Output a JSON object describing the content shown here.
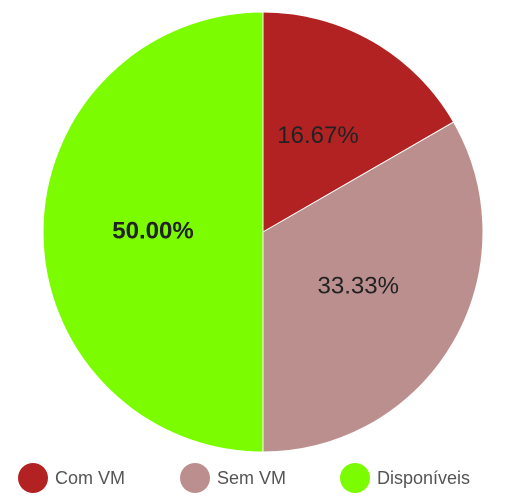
{
  "chart_data": {
    "type": "pie",
    "categories": [
      "Com VM",
      "Sem VM",
      "Disponíveis"
    ],
    "values": [
      16.67,
      33.33,
      50.0
    ],
    "value_labels": [
      "16.67%",
      "33.33%",
      "50.00%"
    ],
    "colors": [
      "#b22222",
      "#bc8f8f",
      "#7cfc00"
    ],
    "legend": "bottom"
  }
}
